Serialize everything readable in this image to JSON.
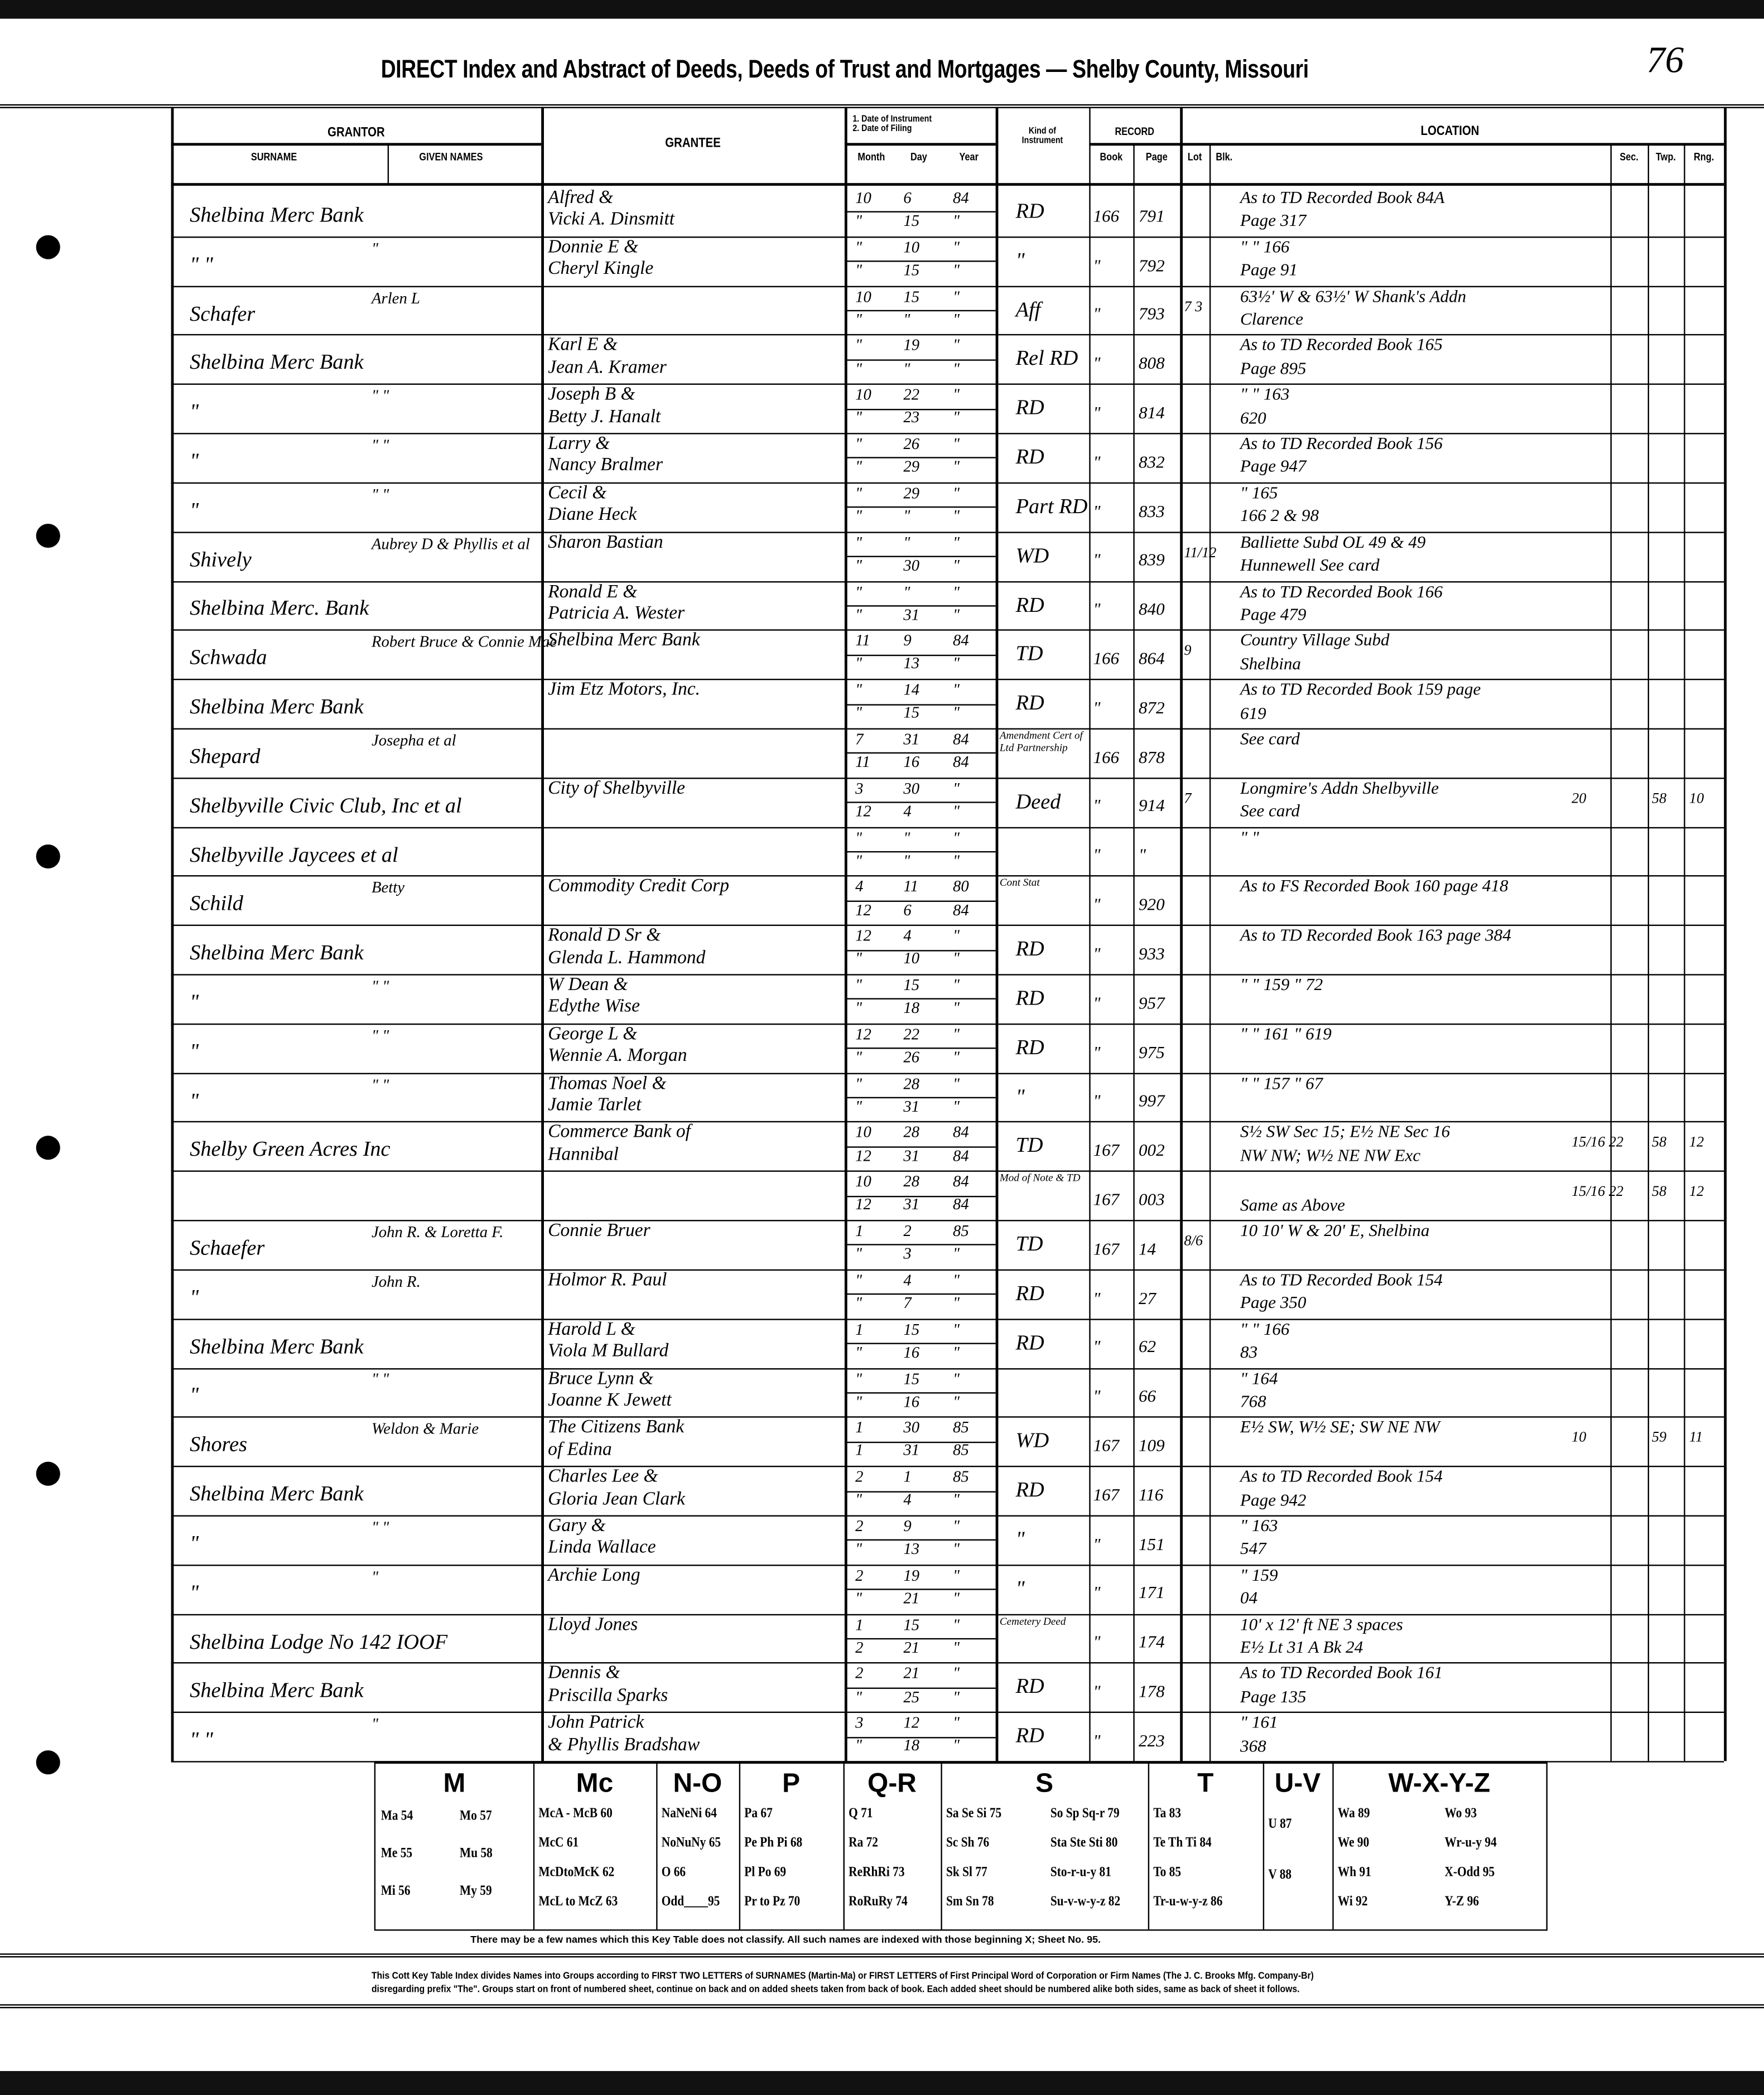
{
  "header": {
    "title": "DIRECT Index and Abstract of Deeds, Deeds of Trust and Mortgages — Shelby County, Missouri",
    "page_number": "76"
  },
  "columns": {
    "grantor": "GRANTOR",
    "surname": "SURNAME",
    "given_names": "GIVEN NAMES",
    "grantee": "GRANTEE",
    "dates": "1. Date of Instrument\n2. Date of Filing",
    "month": "Month",
    "day": "Day",
    "year": "Year",
    "kind": "Kind of Instrument",
    "record": "RECORD",
    "book": "Book",
    "page": "Page",
    "location": "LOCATION",
    "lot": "Lot",
    "blk": "Blk.",
    "sec": "Sec.",
    "twp": "Twp.",
    "rng": "Rng."
  },
  "records": [
    {
      "surname": "Shelbina Merc Bank",
      "given": "",
      "grantee": [
        "Alfred &",
        "Vicki A. Dinsmitt"
      ],
      "d1": [
        "10",
        "6",
        "84"
      ],
      "d2": [
        "\"",
        "15",
        "\""
      ],
      "kind": "RD",
      "book": "166",
      "page": "791",
      "lot": "",
      "loc": [
        "As to TD Recorded Book 84A",
        "Page 317"
      ],
      "sec": "",
      "twp": "",
      "rng": ""
    },
    {
      "surname": "\"   \"",
      "given": "\"",
      "grantee": [
        "Donnie E &",
        "Cheryl Kingle"
      ],
      "d1": [
        "\"",
        "10",
        "\""
      ],
      "d2": [
        "\"",
        "15",
        "\""
      ],
      "kind": "\"",
      "book": "\"",
      "page": "792",
      "lot": "",
      "loc": [
        "\"   \"   166",
        "Page 91"
      ],
      "sec": "",
      "twp": "",
      "rng": ""
    },
    {
      "surname": "Schafer",
      "given": "Arlen L",
      "grantee": [
        "",
        ""
      ],
      "d1": [
        "10",
        "15",
        "\""
      ],
      "d2": [
        "\"",
        "\"",
        "\""
      ],
      "kind": "Aff",
      "book": "\"",
      "page": "793",
      "lot": "7 3",
      "loc": [
        "63½' W & 63½' W Shank's Addn",
        "Clarence"
      ],
      "sec": "",
      "twp": "",
      "rng": ""
    },
    {
      "surname": "Shelbina Merc Bank",
      "given": "",
      "grantee": [
        "Karl E &",
        "Jean A. Kramer"
      ],
      "d1": [
        "\"",
        "19",
        "\""
      ],
      "d2": [
        "\"",
        "\"",
        "\""
      ],
      "kind": "Rel RD",
      "book": "\"",
      "page": "808",
      "lot": "",
      "loc": [
        "As to TD Recorded Book 165",
        "Page 895"
      ],
      "sec": "",
      "twp": "",
      "rng": ""
    },
    {
      "surname": "\"",
      "given": "\"   \"",
      "grantee": [
        "Joseph B &",
        "Betty J. Hanalt"
      ],
      "d1": [
        "10",
        "22",
        "\""
      ],
      "d2": [
        "\"",
        "23",
        "\""
      ],
      "kind": "RD",
      "book": "\"",
      "page": "814",
      "lot": "",
      "loc": [
        "\"   \"   163",
        "620"
      ],
      "sec": "",
      "twp": "",
      "rng": ""
    },
    {
      "surname": "\"",
      "given": "\"   \"",
      "grantee": [
        "Larry &",
        "Nancy Bralmer"
      ],
      "d1": [
        "\"",
        "26",
        "\""
      ],
      "d2": [
        "\"",
        "29",
        "\""
      ],
      "kind": "RD",
      "book": "\"",
      "page": "832",
      "lot": "",
      "loc": [
        "As to TD Recorded Book 156",
        "Page 947"
      ],
      "sec": "",
      "twp": "",
      "rng": ""
    },
    {
      "surname": "\"",
      "given": "\"   \"",
      "grantee": [
        "Cecil &",
        "Diane Heck"
      ],
      "d1": [
        "\"",
        "29",
        "\""
      ],
      "d2": [
        "\"",
        "\"",
        "\""
      ],
      "kind": "Part RD",
      "book": "\"",
      "page": "833",
      "lot": "",
      "loc": [
        "\"   165",
        "166 2 & 98"
      ],
      "sec": "",
      "twp": "",
      "rng": ""
    },
    {
      "surname": "Shively",
      "given": "Aubrey D & Phyllis et al",
      "grantee": [
        "Sharon Bastian",
        ""
      ],
      "d1": [
        "\"",
        "\"",
        "\""
      ],
      "d2": [
        "\"",
        "30",
        "\""
      ],
      "kind": "WD",
      "book": "\"",
      "page": "839",
      "lot": "11/12",
      "loc": [
        "Balliette Subd OL 49 & 49",
        "Hunnewell   See card"
      ],
      "sec": "",
      "twp": "",
      "rng": ""
    },
    {
      "surname": "Shelbina Merc. Bank",
      "given": "",
      "grantee": [
        "Ronald E &",
        "Patricia A. Wester"
      ],
      "d1": [
        "\"",
        "\"",
        "\""
      ],
      "d2": [
        "\"",
        "31",
        "\""
      ],
      "kind": "RD",
      "book": "\"",
      "page": "840",
      "lot": "",
      "loc": [
        "As to TD Recorded Book 166",
        "Page 479"
      ],
      "sec": "",
      "twp": "",
      "rng": ""
    },
    {
      "surname": "Schwada",
      "given": "Robert Bruce & Connie Mae",
      "grantee": [
        "Shelbina Merc Bank",
        ""
      ],
      "d1": [
        "11",
        "9",
        "84"
      ],
      "d2": [
        "\"",
        "13",
        "\""
      ],
      "kind": "TD",
      "book": "166",
      "page": "864",
      "lot": "9",
      "loc": [
        "Country Village Subd",
        "Shelbina"
      ],
      "sec": "",
      "twp": "",
      "rng": ""
    },
    {
      "surname": "Shelbina Merc Bank",
      "given": "",
      "grantee": [
        "Jim Etz Motors, Inc.",
        ""
      ],
      "d1": [
        "\"",
        "14",
        "\""
      ],
      "d2": [
        "\"",
        "15",
        "\""
      ],
      "kind": "RD",
      "book": "\"",
      "page": "872",
      "lot": "",
      "loc": [
        "As to TD Recorded Book 159 page",
        "619"
      ],
      "sec": "",
      "twp": "",
      "rng": ""
    },
    {
      "surname": "Shepard",
      "given": "Josepha et al",
      "grantee": [
        "",
        ""
      ],
      "d1": [
        "7",
        "31",
        "84"
      ],
      "d2": [
        "11",
        "16",
        "84"
      ],
      "kind": "Amendment Cert of Ltd Partnership",
      "book": "166",
      "page": "878",
      "lot": "",
      "loc": [
        "See card",
        ""
      ],
      "sec": "",
      "twp": "",
      "rng": ""
    },
    {
      "surname": "Shelbyville Civic Club, Inc et al",
      "given": "",
      "grantee": [
        "City of Shelbyville",
        ""
      ],
      "d1": [
        "3",
        "30",
        "\""
      ],
      "d2": [
        "12",
        "4",
        "\""
      ],
      "kind": "Deed",
      "book": "\"",
      "page": "914",
      "lot": "7",
      "loc": [
        "Longmire's Addn Shelbyville",
        "See card"
      ],
      "sec": "20",
      "twp": "58",
      "rng": "10"
    },
    {
      "surname": "Shelbyville Jaycees et al",
      "given": "",
      "grantee": [
        "",
        ""
      ],
      "d1": [
        "\"",
        "\"",
        "\""
      ],
      "d2": [
        "\"",
        "\"",
        "\""
      ],
      "kind": "",
      "book": "\"",
      "page": "\"",
      "lot": "",
      "loc": [
        "\"   \"",
        ""
      ],
      "sec": "",
      "twp": "",
      "rng": ""
    },
    {
      "surname": "Schild",
      "given": "Betty",
      "grantee": [
        "Commodity Credit Corp",
        ""
      ],
      "d1": [
        "4",
        "11",
        "80"
      ],
      "d2": [
        "12",
        "6",
        "84"
      ],
      "kind": "Cont Stat",
      "book": "\"",
      "page": "920",
      "lot": "",
      "loc": [
        "As to FS Recorded Book 160 page 418",
        ""
      ],
      "sec": "",
      "twp": "",
      "rng": ""
    },
    {
      "surname": "Shelbina Merc Bank",
      "given": "",
      "grantee": [
        "Ronald D Sr &",
        "Glenda L. Hammond"
      ],
      "d1": [
        "12",
        "4",
        "\""
      ],
      "d2": [
        "\"",
        "10",
        "\""
      ],
      "kind": "RD",
      "book": "\"",
      "page": "933",
      "lot": "",
      "loc": [
        "As to TD Recorded Book 163 page 384",
        ""
      ],
      "sec": "",
      "twp": "",
      "rng": ""
    },
    {
      "surname": "\"",
      "given": "\"   \"",
      "grantee": [
        "W Dean &",
        "Edythe Wise"
      ],
      "d1": [
        "\"",
        "15",
        "\""
      ],
      "d2": [
        "\"",
        "18",
        "\""
      ],
      "kind": "RD",
      "book": "\"",
      "page": "957",
      "lot": "",
      "loc": [
        "\"   \"   159   \"   72",
        ""
      ],
      "sec": "",
      "twp": "",
      "rng": ""
    },
    {
      "surname": "\"",
      "given": "\"   \"",
      "grantee": [
        "George L &",
        "Wennie A. Morgan"
      ],
      "d1": [
        "12",
        "22",
        "\""
      ],
      "d2": [
        "\"",
        "26",
        "\""
      ],
      "kind": "RD",
      "book": "\"",
      "page": "975",
      "lot": "",
      "loc": [
        "\"   \"   161   \"   619",
        ""
      ],
      "sec": "",
      "twp": "",
      "rng": ""
    },
    {
      "surname": "\"",
      "given": "\"   \"",
      "grantee": [
        "Thomas Noel &",
        "Jamie Tarlet"
      ],
      "d1": [
        "\"",
        "28",
        "\""
      ],
      "d2": [
        "\"",
        "31",
        "\""
      ],
      "kind": "\"",
      "book": "\"",
      "page": "997",
      "lot": "",
      "loc": [
        "\"   \"   157   \"   67",
        ""
      ],
      "sec": "",
      "twp": "",
      "rng": ""
    },
    {
      "surname": "Shelby Green Acres Inc",
      "given": "",
      "grantee": [
        "Commerce Bank of",
        "Hannibal"
      ],
      "d1": [
        "10",
        "28",
        "84"
      ],
      "d2": [
        "12",
        "31",
        "84"
      ],
      "kind": "TD",
      "book": "167",
      "page": "002",
      "lot": "",
      "loc": [
        "S½ SW Sec 15; E½ NE Sec 16",
        "NW NW; W½ NE NW Exc"
      ],
      "sec": "15/16 22",
      "twp": "58",
      "rng": "12"
    },
    {
      "surname": "",
      "given": "",
      "grantee": [
        "",
        ""
      ],
      "d1": [
        "10",
        "28",
        "84"
      ],
      "d2": [
        "12",
        "31",
        "84"
      ],
      "kind": "Mod of Note & TD",
      "book": "167",
      "page": "003",
      "lot": "",
      "loc": [
        "",
        "Same as Above"
      ],
      "sec": "15/16 22",
      "twp": "58",
      "rng": "12"
    },
    {
      "surname": "Schaefer",
      "given": "John R. & Loretta F.",
      "grantee": [
        "Connie Bruer",
        ""
      ],
      "d1": [
        "1",
        "2",
        "85"
      ],
      "d2": [
        "\"",
        "3",
        "\""
      ],
      "kind": "TD",
      "book": "167",
      "page": "14",
      "lot": "8/6",
      "loc": [
        "10 10' W & 20' E, Shelbina",
        ""
      ],
      "sec": "",
      "twp": "",
      "rng": ""
    },
    {
      "surname": "\"",
      "given": "John R.",
      "grantee": [
        "Holmor R. Paul",
        ""
      ],
      "d1": [
        "\"",
        "4",
        "\""
      ],
      "d2": [
        "\"",
        "7",
        "\""
      ],
      "kind": "RD",
      "book": "\"",
      "page": "27",
      "lot": "",
      "loc": [
        "As to TD Recorded Book 154",
        "Page 350"
      ],
      "sec": "",
      "twp": "",
      "rng": ""
    },
    {
      "surname": "Shelbina Merc Bank",
      "given": "",
      "grantee": [
        "Harold L &",
        "Viola M Bullard"
      ],
      "d1": [
        "1",
        "15",
        "\""
      ],
      "d2": [
        "\"",
        "16",
        "\""
      ],
      "kind": "RD",
      "book": "\"",
      "page": "62",
      "lot": "",
      "loc": [
        "\"   \"   166",
        "83"
      ],
      "sec": "",
      "twp": "",
      "rng": ""
    },
    {
      "surname": "\"",
      "given": "\"   \"",
      "grantee": [
        "Bruce Lynn &",
        "Joanne K Jewett"
      ],
      "d1": [
        "\"",
        "15",
        "\""
      ],
      "d2": [
        "\"",
        "16",
        "\""
      ],
      "kind": "",
      "book": "\"",
      "page": "66",
      "lot": "",
      "loc": [
        "\"   164",
        "768"
      ],
      "sec": "",
      "twp": "",
      "rng": ""
    },
    {
      "surname": "Shores",
      "given": "Weldon & Marie",
      "grantee": [
        "The Citizens Bank",
        "of Edina"
      ],
      "d1": [
        "1",
        "30",
        "85"
      ],
      "d2": [
        "1",
        "31",
        "85"
      ],
      "kind": "WD",
      "book": "167",
      "page": "109",
      "lot": "",
      "loc": [
        "E½ SW, W½ SE; SW NE NW",
        ""
      ],
      "sec": "10",
      "twp": "59",
      "rng": "11"
    },
    {
      "surname": "Shelbina Merc Bank",
      "given": "",
      "grantee": [
        "Charles Lee &",
        "Gloria Jean Clark"
      ],
      "d1": [
        "2",
        "1",
        "85"
      ],
      "d2": [
        "\"",
        "4",
        "\""
      ],
      "kind": "RD",
      "book": "167",
      "page": "116",
      "lot": "",
      "loc": [
        "As to TD Recorded Book 154",
        "Page 942"
      ],
      "sec": "",
      "twp": "",
      "rng": ""
    },
    {
      "surname": "\"",
      "given": "\"   \"",
      "grantee": [
        "Gary &",
        "Linda Wallace"
      ],
      "d1": [
        "2",
        "9",
        "\""
      ],
      "d2": [
        "\"",
        "13",
        "\""
      ],
      "kind": "\"",
      "book": "\"",
      "page": "151",
      "lot": "",
      "loc": [
        "\"   163",
        "547"
      ],
      "sec": "",
      "twp": "",
      "rng": ""
    },
    {
      "surname": "\"",
      "given": "\"",
      "grantee": [
        "Archie Long",
        ""
      ],
      "d1": [
        "2",
        "19",
        "\""
      ],
      "d2": [
        "\"",
        "21",
        "\""
      ],
      "kind": "\"",
      "book": "\"",
      "page": "171",
      "lot": "",
      "loc": [
        "\"   159",
        "04"
      ],
      "sec": "",
      "twp": "",
      "rng": ""
    },
    {
      "surname": "Shelbina Lodge No 142 IOOF",
      "given": "",
      "grantee": [
        "Lloyd Jones",
        ""
      ],
      "d1": [
        "1",
        "15",
        "\""
      ],
      "d2": [
        "2",
        "21",
        "\""
      ],
      "kind": "Cemetery Deed",
      "book": "\"",
      "page": "174",
      "lot": "",
      "loc": [
        "10' x 12' ft NE 3 spaces",
        "E½ Lt 31 A Bk 24"
      ],
      "sec": "",
      "twp": "",
      "rng": ""
    },
    {
      "surname": "Shelbina Merc Bank",
      "given": "",
      "grantee": [
        "Dennis &",
        "Priscilla Sparks"
      ],
      "d1": [
        "2",
        "21",
        "\""
      ],
      "d2": [
        "\"",
        "25",
        "\""
      ],
      "kind": "RD",
      "book": "\"",
      "page": "178",
      "lot": "",
      "loc": [
        "As to TD Recorded Book 161",
        "Page 135"
      ],
      "sec": "",
      "twp": "",
      "rng": ""
    },
    {
      "surname": "\"   \"",
      "given": "\"",
      "grantee": [
        "John Patrick",
        "& Phyllis Bradshaw"
      ],
      "d1": [
        "3",
        "12",
        "\""
      ],
      "d2": [
        "\"",
        "18",
        "\""
      ],
      "kind": "RD",
      "book": "\"",
      "page": "223",
      "lot": "",
      "loc": [
        "\"   161",
        "368"
      ],
      "sec": "",
      "twp": "",
      "rng": ""
    }
  ],
  "key_table": [
    {
      "head": "M",
      "cols": [
        [
          "Ma 54",
          "Me 55",
          "Mi 56"
        ],
        [
          "Mo 57",
          "Mu 58",
          "My 59"
        ]
      ]
    },
    {
      "head": "Mc",
      "cols": [
        [
          "McA - McB 60",
          "McC 61",
          "McDtoMcK 62",
          "McL to McZ 63"
        ]
      ]
    },
    {
      "head": "N-O",
      "cols": [
        [
          "NaNeNi 64",
          "NoNuNy 65",
          "O 66",
          "Odd____95"
        ]
      ]
    },
    {
      "head": "P",
      "cols": [
        [
          "Pa 67",
          "Pe Ph Pi 68",
          "Pl Po 69",
          "Pr to Pz 70"
        ]
      ]
    },
    {
      "head": "Q-R",
      "cols": [
        [
          "Q 71",
          "Ra 72",
          "ReRhRi 73",
          "RoRuRy 74"
        ]
      ]
    },
    {
      "head": "S",
      "cols": [
        [
          "Sa Se Si 75",
          "Sc Sh 76",
          "Sk Sl 77",
          "Sm Sn 78"
        ],
        [
          "So Sp Sq-r 79",
          "Sta Ste Sti 80",
          "Sto-r-u-y 81",
          "Su-v-w-y-z 82"
        ]
      ]
    },
    {
      "head": "T",
      "cols": [
        [
          "Ta 83",
          "Te Th Ti 84",
          "To 85",
          "Tr-u-w-y-z 86"
        ]
      ]
    },
    {
      "head": "U-V",
      "cols": [
        [
          "U 87",
          "V 88"
        ]
      ]
    },
    {
      "head": "W-X-Y-Z",
      "cols": [
        [
          "Wa 89",
          "We 90",
          "Wh 91",
          "Wi 92"
        ],
        [
          "Wo 93",
          "Wr-u-y 94",
          "X-Odd 95",
          "Y-Z 96"
        ]
      ]
    }
  ],
  "key_note": "There may be a few names which this Key Table does not classify.  All such names are indexed with those beginning X; Sheet No. 95.",
  "footer": [
    "This Cott Key Table Index divides Names into Groups according to FIRST TWO LETTERS of SURNAMES (Martin-Ma) or FIRST LETTERS of First Principal Word of Corporation or Firm Names (The J. C. Brooks Mfg. Company-Br)",
    "disregarding prefix \"The\". Groups start on front of numbered sheet, continue on back and on added sheets taken from back of book. Each added sheet should be numbered alike both sides, same as back of sheet it follows."
  ]
}
